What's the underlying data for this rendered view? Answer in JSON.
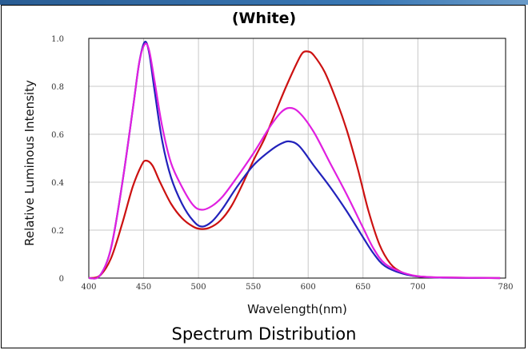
{
  "title": "(White)",
  "footer_caption": "Spectrum Distribution",
  "chart_data": {
    "type": "line",
    "xlabel": "Wavelength(nm)",
    "ylabel": "Relative Luminous Intensity",
    "xlim": [
      400,
      780
    ],
    "ylim": [
      0,
      1.0
    ],
    "x_ticks": [
      "400",
      "450",
      "500",
      "550",
      "600",
      "650",
      "700",
      "780"
    ],
    "y_ticks": [
      "0",
      "0.2",
      "0.4",
      "0.6",
      "0.8",
      "1.0"
    ],
    "grid": true,
    "series": [
      {
        "color": "#cc1111",
        "points": [
          [
            400,
            0
          ],
          [
            410,
            0.01
          ],
          [
            420,
            0.08
          ],
          [
            430,
            0.22
          ],
          [
            440,
            0.38
          ],
          [
            448,
            0.47
          ],
          [
            452,
            0.49
          ],
          [
            458,
            0.47
          ],
          [
            465,
            0.4
          ],
          [
            475,
            0.31
          ],
          [
            485,
            0.25
          ],
          [
            495,
            0.215
          ],
          [
            502,
            0.205
          ],
          [
            510,
            0.21
          ],
          [
            520,
            0.24
          ],
          [
            530,
            0.3
          ],
          [
            540,
            0.39
          ],
          [
            550,
            0.49
          ],
          [
            560,
            0.58
          ],
          [
            570,
            0.69
          ],
          [
            580,
            0.8
          ],
          [
            590,
            0.9
          ],
          [
            595,
            0.94
          ],
          [
            600,
            0.945
          ],
          [
            605,
            0.93
          ],
          [
            615,
            0.86
          ],
          [
            625,
            0.75
          ],
          [
            635,
            0.62
          ],
          [
            645,
            0.46
          ],
          [
            655,
            0.28
          ],
          [
            665,
            0.14
          ],
          [
            675,
            0.06
          ],
          [
            685,
            0.025
          ],
          [
            695,
            0.01
          ],
          [
            710,
            0.004
          ],
          [
            730,
            0.002
          ],
          [
            775,
            0
          ]
        ]
      },
      {
        "color": "#2222bb",
        "points": [
          [
            400,
            0
          ],
          [
            410,
            0.01
          ],
          [
            420,
            0.12
          ],
          [
            430,
            0.38
          ],
          [
            440,
            0.7
          ],
          [
            446,
            0.9
          ],
          [
            451,
            0.985
          ],
          [
            455,
            0.94
          ],
          [
            460,
            0.78
          ],
          [
            467,
            0.57
          ],
          [
            475,
            0.42
          ],
          [
            485,
            0.31
          ],
          [
            495,
            0.24
          ],
          [
            503,
            0.215
          ],
          [
            512,
            0.235
          ],
          [
            522,
            0.29
          ],
          [
            535,
            0.38
          ],
          [
            550,
            0.47
          ],
          [
            565,
            0.53
          ],
          [
            575,
            0.56
          ],
          [
            583,
            0.57
          ],
          [
            592,
            0.55
          ],
          [
            605,
            0.47
          ],
          [
            620,
            0.38
          ],
          [
            635,
            0.28
          ],
          [
            650,
            0.17
          ],
          [
            660,
            0.1
          ],
          [
            670,
            0.05
          ],
          [
            685,
            0.02
          ],
          [
            700,
            0.007
          ],
          [
            720,
            0.002
          ],
          [
            775,
            0
          ]
        ]
      },
      {
        "color": "#e020e0",
        "points": [
          [
            400,
            0
          ],
          [
            410,
            0.01
          ],
          [
            420,
            0.12
          ],
          [
            430,
            0.38
          ],
          [
            440,
            0.7
          ],
          [
            446,
            0.9
          ],
          [
            451,
            0.975
          ],
          [
            455,
            0.95
          ],
          [
            460,
            0.82
          ],
          [
            467,
            0.63
          ],
          [
            475,
            0.48
          ],
          [
            485,
            0.38
          ],
          [
            495,
            0.305
          ],
          [
            503,
            0.285
          ],
          [
            512,
            0.3
          ],
          [
            522,
            0.34
          ],
          [
            535,
            0.42
          ],
          [
            550,
            0.52
          ],
          [
            565,
            0.63
          ],
          [
            575,
            0.69
          ],
          [
            583,
            0.71
          ],
          [
            592,
            0.69
          ],
          [
            605,
            0.61
          ],
          [
            620,
            0.48
          ],
          [
            635,
            0.35
          ],
          [
            650,
            0.21
          ],
          [
            660,
            0.12
          ],
          [
            670,
            0.06
          ],
          [
            685,
            0.025
          ],
          [
            700,
            0.008
          ],
          [
            720,
            0.003
          ],
          [
            775,
            0
          ]
        ]
      }
    ]
  }
}
